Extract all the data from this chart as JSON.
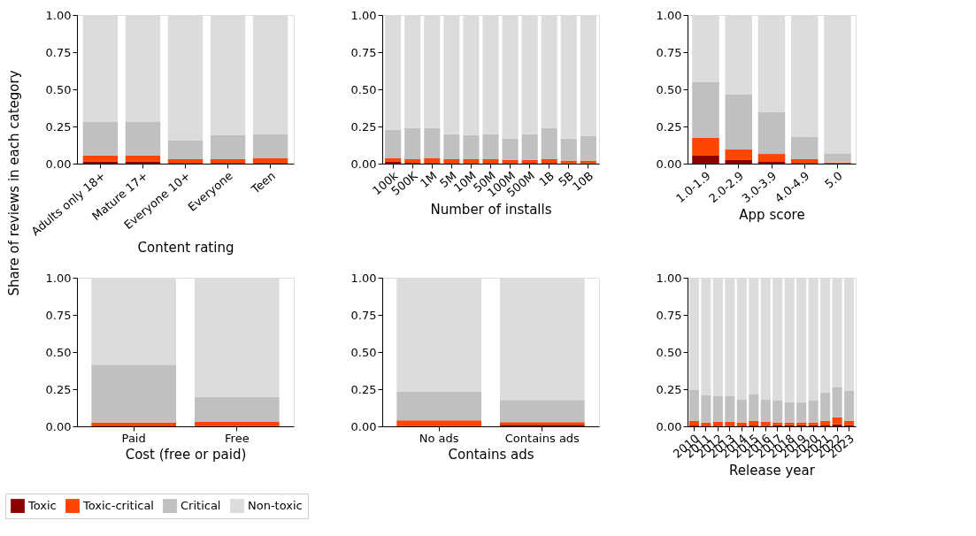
{
  "chart_data": [
    {
      "type": "bar",
      "stacked": true,
      "xlabel": "Content rating",
      "ylabel": "Share of reviews in each category",
      "legend": "bottom",
      "categories": [
        "Adults only 18+",
        "Mature 17+",
        "Everyone 10+",
        "Everyone",
        "Teen"
      ],
      "ylim": [
        0,
        1.0
      ],
      "yticks": [
        {
          "value": 0,
          "label": "0.00"
        },
        {
          "value": 0.25,
          "label": "0.25"
        },
        {
          "value": 0.5,
          "label": "0.50"
        },
        {
          "value": 0.75,
          "label": "0.75"
        },
        {
          "value": 1.0,
          "label": "1.00"
        }
      ],
      "series": [
        {
          "name": "Toxic",
          "color": "#8b0000",
          "values": [
            0.015,
            0.015,
            0.005,
            0.005,
            0.005
          ]
        },
        {
          "name": "Toxic-critical",
          "color": "#ff4500",
          "values": [
            0.04,
            0.04,
            0.025,
            0.025,
            0.03
          ]
        },
        {
          "name": "Critical",
          "color": "#c0c0c0",
          "values": [
            0.225,
            0.225,
            0.125,
            0.16,
            0.165
          ]
        },
        {
          "name": "Non-toxic",
          "color": "#dcdcdc",
          "values": [
            0.72,
            0.72,
            0.845,
            0.81,
            0.8
          ]
        }
      ]
    },
    {
      "type": "bar",
      "stacked": true,
      "xlabel": "Number of installs",
      "legend": "bottom",
      "categories": [
        "100k",
        "500K",
        "1M",
        "5M",
        "10M",
        "50M",
        "100M",
        "500M",
        "1B",
        "5B",
        "10B"
      ],
      "ylim": [
        0,
        1.0
      ],
      "yticks": [
        {
          "value": 0,
          "label": "0.00"
        },
        {
          "value": 0.25,
          "label": "0.25"
        },
        {
          "value": 0.5,
          "label": "0.50"
        },
        {
          "value": 0.75,
          "label": "0.75"
        },
        {
          "value": 1.0,
          "label": "1.00"
        }
      ],
      "series": [
        {
          "name": "Toxic",
          "color": "#8b0000",
          "values": [
            0.015,
            0.005,
            0.005,
            0.004,
            0.004,
            0.004,
            0.004,
            0.004,
            0.004,
            0.003,
            0.003
          ]
        },
        {
          "name": "Toxic-critical",
          "color": "#ff4500",
          "values": [
            0.023,
            0.025,
            0.03,
            0.026,
            0.026,
            0.026,
            0.022,
            0.022,
            0.026,
            0.017,
            0.017
          ]
        },
        {
          "name": "Critical",
          "color": "#c0c0c0",
          "values": [
            0.19,
            0.21,
            0.205,
            0.168,
            0.162,
            0.168,
            0.142,
            0.172,
            0.21,
            0.148,
            0.166
          ]
        },
        {
          "name": "Non-toxic",
          "color": "#dcdcdc",
          "values": [
            0.772,
            0.76,
            0.76,
            0.802,
            0.808,
            0.802,
            0.832,
            0.802,
            0.76,
            0.832,
            0.814
          ]
        }
      ]
    },
    {
      "type": "bar",
      "stacked": true,
      "xlabel": "App score",
      "legend": "bottom",
      "categories": [
        "1.0-1.9",
        "2.0-2.9",
        "3.0-3.9",
        "4.0-4.9",
        "5.0"
      ],
      "ylim": [
        0,
        1.0
      ],
      "yticks": [
        {
          "value": 0,
          "label": "0.00"
        },
        {
          "value": 0.25,
          "label": "0.25"
        },
        {
          "value": 0.5,
          "label": "0.50"
        },
        {
          "value": 0.75,
          "label": "0.75"
        },
        {
          "value": 1.0,
          "label": "1.00"
        }
      ],
      "series": [
        {
          "name": "Toxic",
          "color": "#8b0000",
          "values": [
            0.054,
            0.024,
            0.012,
            0.004,
            null
          ]
        },
        {
          "name": "Toxic-critical",
          "color": "#ff4500",
          "values": [
            0.119,
            0.071,
            0.053,
            0.026,
            0.008
          ]
        },
        {
          "name": "Critical",
          "color": "#c0c0c0",
          "values": [
            0.375,
            0.369,
            0.28,
            0.149,
            0.061
          ]
        },
        {
          "name": "Non-toxic",
          "color": "#dcdcdc",
          "values": [
            0.452,
            0.536,
            0.655,
            0.821,
            0.929
          ]
        }
      ]
    },
    {
      "type": "bar",
      "stacked": true,
      "xlabel": "Cost (free or paid)",
      "legend": "bottom",
      "categories": [
        "Paid",
        "Free"
      ],
      "ylim": [
        0,
        1.0
      ],
      "yticks": [
        {
          "value": 0,
          "label": "0.00"
        },
        {
          "value": 0.25,
          "label": "0.25"
        },
        {
          "value": 0.5,
          "label": "0.50"
        },
        {
          "value": 0.75,
          "label": "0.75"
        },
        {
          "value": 1.0,
          "label": "1.00"
        }
      ],
      "series": [
        {
          "name": "Toxic",
          "color": "#8b0000",
          "values": [
            null,
            0.003
          ]
        },
        {
          "name": "Toxic-critical",
          "color": "#ff4500",
          "values": [
            0.025,
            0.027
          ]
        },
        {
          "name": "Critical",
          "color": "#c0c0c0",
          "values": [
            0.39,
            0.168
          ]
        },
        {
          "name": "Non-toxic",
          "color": "#dcdcdc",
          "values": [
            0.583,
            0.802
          ]
        }
      ]
    },
    {
      "type": "bar",
      "stacked": true,
      "xlabel": "Contains ads",
      "legend": "bottom",
      "categories": [
        "No ads",
        "Contains ads"
      ],
      "ylim": [
        0,
        1.0
      ],
      "yticks": [
        {
          "value": 0,
          "label": "0.00"
        },
        {
          "value": 0.25,
          "label": "0.25"
        },
        {
          "value": 0.5,
          "label": "0.50"
        },
        {
          "value": 0.75,
          "label": "0.75"
        },
        {
          "value": 1.0,
          "label": "1.00"
        }
      ],
      "series": [
        {
          "name": "Toxic",
          "color": "#8b0000",
          "values": [
            0.003,
            0.01
          ]
        },
        {
          "name": "Toxic-critical",
          "color": "#ff4500",
          "values": [
            0.037,
            0.018
          ]
        },
        {
          "name": "Critical",
          "color": "#c0c0c0",
          "values": [
            0.195,
            0.149
          ]
        },
        {
          "name": "Non-toxic",
          "color": "#dcdcdc",
          "values": [
            0.765,
            0.823
          ]
        }
      ]
    },
    {
      "type": "bar",
      "stacked": true,
      "xlabel": "Release year",
      "legend": "bottom",
      "categories": [
        "2010",
        "2011",
        "2012",
        "2013",
        "2014",
        "2015",
        "2016",
        "2017",
        "2018",
        "2019",
        "2020",
        "2021",
        "2022",
        "2023"
      ],
      "ylim": [
        0,
        1.0
      ],
      "yticks": [
        {
          "value": 0,
          "label": "0.00"
        },
        {
          "value": 0.25,
          "label": "0.25"
        },
        {
          "value": 0.5,
          "label": "0.50"
        },
        {
          "value": 0.75,
          "label": "0.75"
        },
        {
          "value": 1.0,
          "label": "1.00"
        }
      ],
      "series": [
        {
          "name": "Toxic",
          "color": "#8b0000",
          "values": [
            0.005,
            0.004,
            0.004,
            0.004,
            0.004,
            0.005,
            0.004,
            0.008,
            0.008,
            0.008,
            0.008,
            0.006,
            0.014,
            0.008
          ]
        },
        {
          "name": "Toxic-critical",
          "color": "#ff4500",
          "values": [
            0.032,
            0.021,
            0.027,
            0.027,
            0.021,
            0.032,
            0.027,
            0.017,
            0.017,
            0.017,
            0.017,
            0.031,
            0.047,
            0.029
          ]
        },
        {
          "name": "Critical",
          "color": "#c0c0c0",
          "values": [
            0.207,
            0.184,
            0.172,
            0.172,
            0.154,
            0.178,
            0.148,
            0.148,
            0.137,
            0.137,
            0.148,
            0.19,
            0.201,
            0.201
          ]
        },
        {
          "name": "Non-toxic",
          "color": "#dcdcdc",
          "values": [
            0.756,
            0.791,
            0.797,
            0.797,
            0.821,
            0.785,
            0.821,
            0.827,
            0.838,
            0.838,
            0.827,
            0.773,
            0.738,
            0.762
          ]
        }
      ]
    }
  ]
}
